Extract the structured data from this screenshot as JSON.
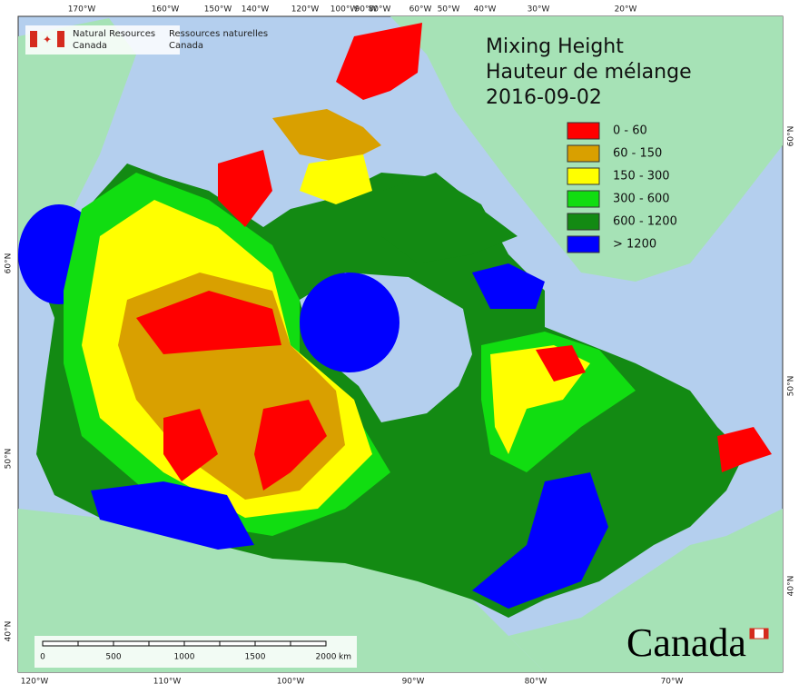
{
  "header": {
    "agency_en": [
      "Natural Resources",
      "Canada"
    ],
    "agency_fr": [
      "Ressources naturelles",
      "Canada"
    ]
  },
  "title": [
    "Mixing Height",
    "Hauteur de mélange",
    "2016-09-02"
  ],
  "legend": [
    {
      "label": "0 - 60",
      "color": "#ff0000"
    },
    {
      "label": "60 - 150",
      "color": "#d9a000"
    },
    {
      "label": "150 - 300",
      "color": "#ffff00"
    },
    {
      "label": "300 - 600",
      "color": "#11dd11"
    },
    {
      "label": "600 - 1200",
      "color": "#138a13"
    },
    {
      "label": "> 1200",
      "color": "#0000ff"
    }
  ],
  "graticule": {
    "top": [
      "170°W",
      "160°W",
      "150°W",
      "140°W",
      "120°W",
      "100°W",
      "90°W",
      "80°W",
      "60°W",
      "50°W",
      "40°W",
      "30°W",
      "20°W"
    ],
    "bottom": [
      "120°W",
      "110°W",
      "100°W",
      "90°W",
      "80°W",
      "70°W"
    ],
    "left": [
      "60°N",
      "50°N",
      "40°N"
    ],
    "right": [
      "60°N",
      "50°N",
      "40°N"
    ]
  },
  "scale_bar": {
    "labels": [
      "0",
      "500",
      "1000",
      "1500",
      "2000"
    ],
    "unit": "km"
  },
  "wordmark": "Canada"
}
